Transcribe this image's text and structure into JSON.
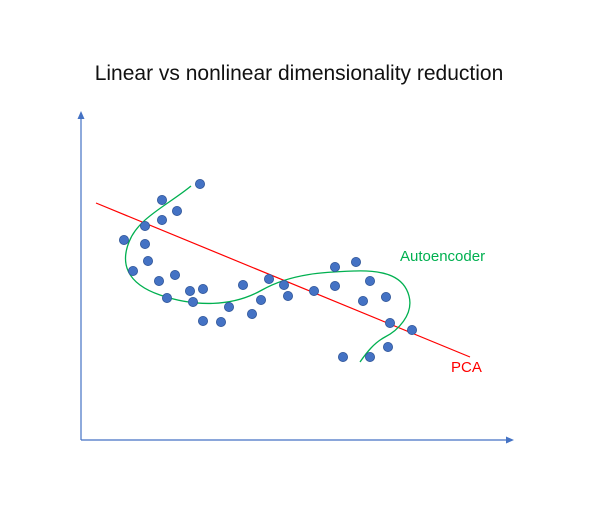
{
  "title": "Linear vs nonlinear dimensionality reduction",
  "labels": {
    "autoencoder": "Autoencoder",
    "pca": "PCA"
  },
  "colors": {
    "axis": "#4472c4",
    "point_fill": "#4472c4",
    "point_stroke": "#2f5597",
    "autoencoder": "#00b050",
    "pca": "#ff0000",
    "title": "#111111"
  },
  "points": [
    [
      200,
      184
    ],
    [
      162,
      200
    ],
    [
      177,
      211
    ],
    [
      162,
      220
    ],
    [
      145,
      226
    ],
    [
      124,
      240
    ],
    [
      145,
      244
    ],
    [
      148,
      261
    ],
    [
      133,
      271
    ],
    [
      175,
      275
    ],
    [
      159,
      281
    ],
    [
      190,
      291
    ],
    [
      203,
      289
    ],
    [
      167,
      298
    ],
    [
      193,
      302
    ],
    [
      243,
      285
    ],
    [
      269,
      279
    ],
    [
      284,
      285
    ],
    [
      288,
      296
    ],
    [
      261,
      300
    ],
    [
      229,
      307
    ],
    [
      252,
      314
    ],
    [
      203,
      321
    ],
    [
      221,
      322
    ],
    [
      314,
      291
    ],
    [
      335,
      286
    ],
    [
      335,
      267
    ],
    [
      356,
      262
    ],
    [
      370,
      281
    ],
    [
      363,
      301
    ],
    [
      386,
      297
    ],
    [
      390,
      323
    ],
    [
      412,
      330
    ],
    [
      388,
      347
    ],
    [
      343,
      357
    ],
    [
      370,
      357
    ]
  ]
}
